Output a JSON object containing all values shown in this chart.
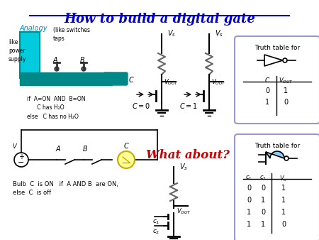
{
  "title": "How to build a digital gate",
  "title_color": "#0000CC",
  "bg_color": "#FFFFFF",
  "analogy_label": "Analogy",
  "analogy_color": "#0088CC",
  "like_power": "like\npower\nsupply",
  "switches_text": "(like switches\ntaps",
  "pipe_color": "#008888",
  "water_color": "#00CCDD",
  "tap_color": "#333333",
  "bulb_color": "#FFFF99",
  "wire_color": "#000000",
  "battery_color": "#000000",
  "truth_table1_title": "Truth table for",
  "truth_table1_rows": [
    [
      "0",
      "1"
    ],
    [
      "1",
      "0"
    ]
  ],
  "truth_table2_title": "Truth table for",
  "truth_table2_header": [
    "c1",
    "c2",
    "V_o"
  ],
  "truth_table2_rows": [
    [
      "0",
      "0",
      "1"
    ],
    [
      "0",
      "1",
      "1"
    ],
    [
      "1",
      "0",
      "1"
    ],
    [
      "1",
      "1",
      "0"
    ]
  ],
  "what_about_text": "What about?",
  "what_about_color": "#CC0000",
  "if_text": "if  A=ON  AND  B=ON\n      C has H₂O\nelse   C has no H₂O",
  "bulb_text": "Bulb  C  is ON   if  A AND B  are ON,\nelse  C  is off",
  "resistor_color": "#666666",
  "nand_color": "#88CCFF",
  "border1_color": "#9999CC",
  "border2_color": "#9999CC"
}
